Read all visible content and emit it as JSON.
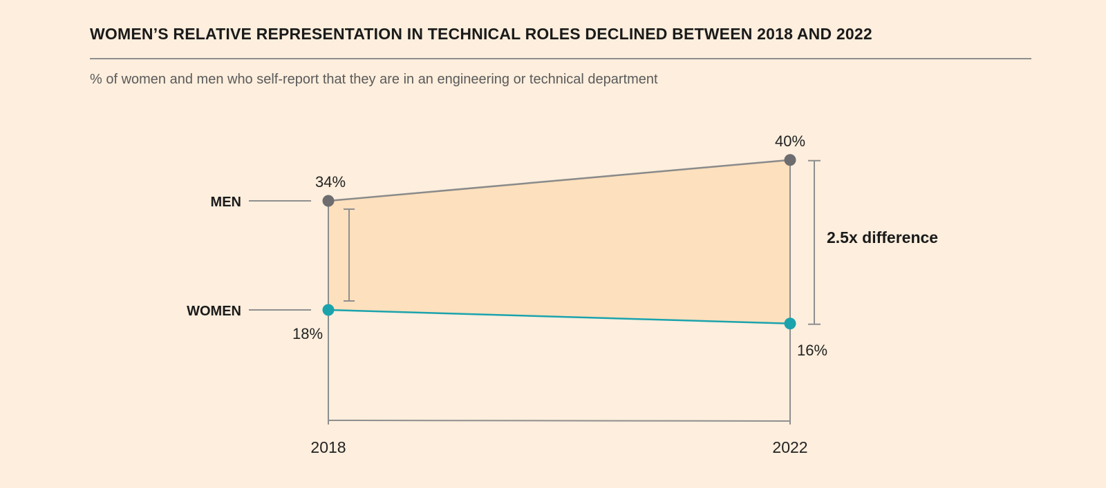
{
  "title": "WOMEN’S RELATIVE REPRESENTATION IN TECHNICAL ROLES DECLINED BETWEEN 2018 AND 2022",
  "subtitle": "% of women and men who self-report that they are in an engineering or technical department",
  "colors": {
    "background": "#fdeedd",
    "men_line": "#8a8a8a",
    "men_marker": "#6d6d70",
    "women_line": "#1aa3ad",
    "gap_fill": "#fde0bd",
    "axis": "#8e8e8e"
  },
  "chart_data": {
    "type": "line",
    "categories": [
      "2018",
      "2022"
    ],
    "series": [
      {
        "name": "MEN",
        "values": [
          34,
          40
        ],
        "labels": [
          "34%",
          "40%"
        ]
      },
      {
        "name": "WOMEN",
        "values": [
          18,
          16
        ],
        "labels": [
          "18%",
          "16%"
        ]
      }
    ],
    "annotations": [
      {
        "text": "2.5x difference",
        "category": "2022"
      }
    ],
    "fill_between": true,
    "grid": false,
    "legend": "inline-left"
  }
}
